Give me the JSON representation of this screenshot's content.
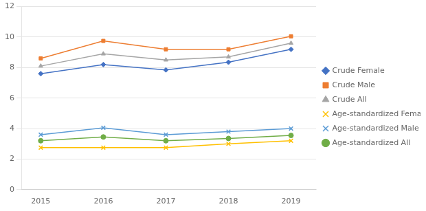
{
  "chart_data": {
    "type": "line",
    "x": [
      2015,
      2016,
      2017,
      2018,
      2019
    ],
    "series": [
      {
        "name": "Crude Female",
        "color": "#4472C4",
        "marker": "diamond",
        "values": [
          7.6,
          8.2,
          7.85,
          8.35,
          9.2
        ]
      },
      {
        "name": "Crude Male",
        "color": "#ED7D31",
        "marker": "square",
        "values": [
          8.6,
          9.75,
          9.2,
          9.2,
          10.05
        ]
      },
      {
        "name": "Crude All",
        "color": "#A5A5A5",
        "marker": "triangle",
        "values": [
          8.1,
          8.9,
          8.5,
          8.7,
          9.6
        ]
      },
      {
        "name": "Age-standardized Female",
        "color": "#FFC000",
        "marker": "x",
        "values": [
          2.75,
          2.75,
          2.75,
          3.0,
          3.2
        ]
      },
      {
        "name": "Age-standardized Male",
        "color": "#5B9BD5",
        "marker": "x",
        "values": [
          3.6,
          4.05,
          3.6,
          3.8,
          4.0
        ]
      },
      {
        "name": "Age-standardized All",
        "color": "#70AD47",
        "marker": "circle",
        "values": [
          3.2,
          3.45,
          3.2,
          3.35,
          3.55
        ]
      }
    ],
    "xlim": [
      2014.7,
      2019.4
    ],
    "xticks": [
      2015,
      2016,
      2017,
      2018,
      2019
    ],
    "ylim": [
      0,
      12
    ],
    "yticks": [
      0,
      2,
      4,
      6,
      8,
      10,
      12
    ],
    "grid": "y",
    "legend": "right"
  }
}
